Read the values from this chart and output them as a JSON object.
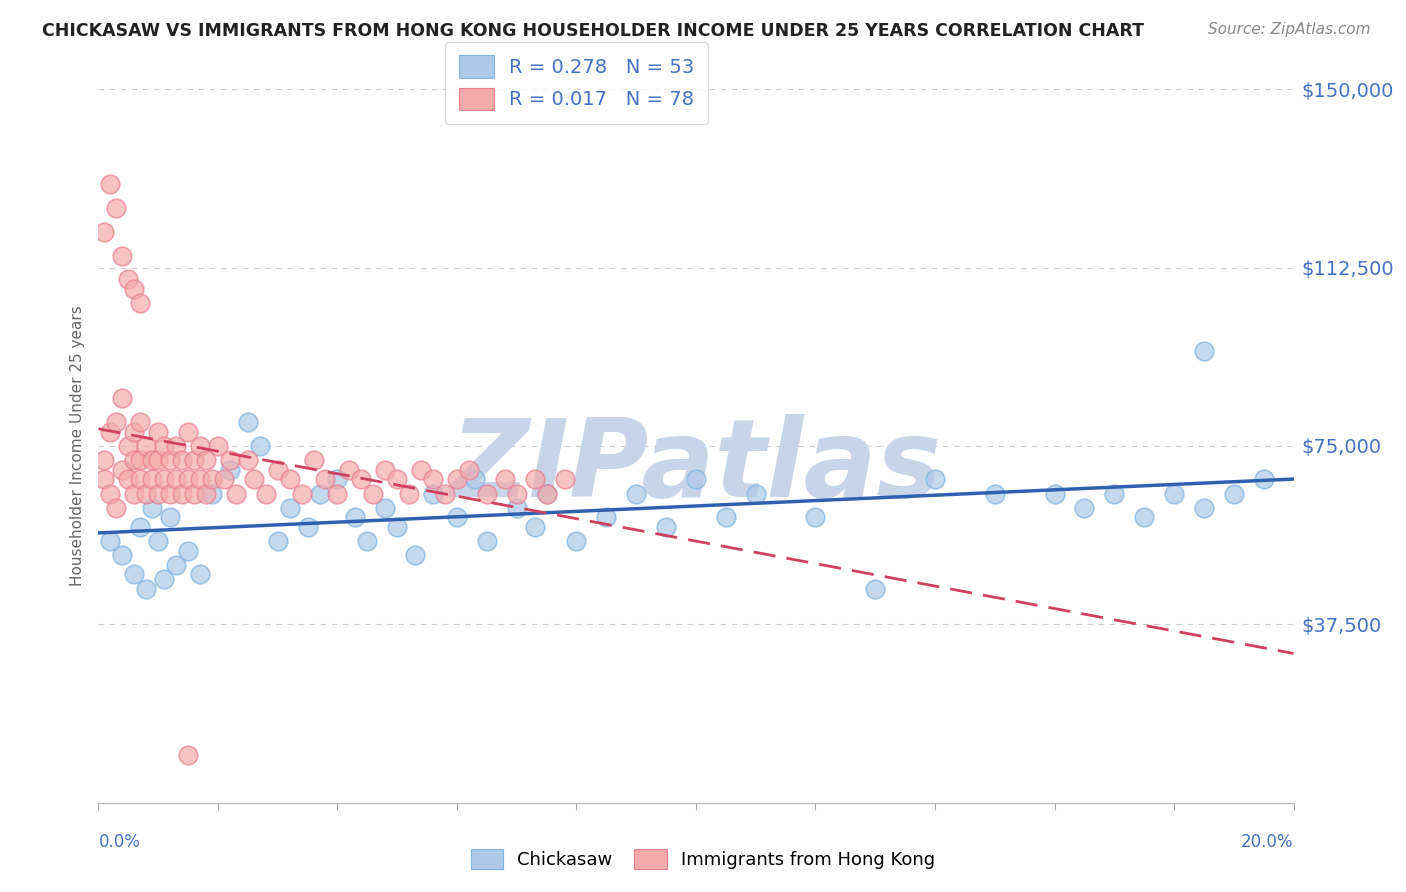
{
  "title": "CHICKASAW VS IMMIGRANTS FROM HONG KONG HOUSEHOLDER INCOME UNDER 25 YEARS CORRELATION CHART",
  "source": "Source: ZipAtlas.com",
  "ylabel": "Householder Income Under 25 years",
  "yticks": [
    0,
    37500,
    75000,
    112500,
    150000
  ],
  "ytick_labels": [
    "",
    "$37,500",
    "$75,000",
    "$112,500",
    "$150,000"
  ],
  "watermark": "ZIPatlas",
  "watermark_color": "#c8d4e8",
  "background_color": "#ffffff",
  "title_color": "#222222",
  "source_color": "#888888",
  "axis_label_color": "#4472c4",
  "chickasaw_color": "#adc9e8",
  "hk_color": "#f4aaaa",
  "chickasaw_edge_color": "#7fb3e0",
  "hk_edge_color": "#e88090",
  "chickasaw_line_color": "#3060b0",
  "hk_line_color": "#d04060",
  "grid_color": "#cccccc",
  "xlim": [
    0.0,
    0.2
  ],
  "ylim": [
    0,
    150000
  ],
  "chickasaw_x": [
    0.002,
    0.004,
    0.006,
    0.007,
    0.008,
    0.009,
    0.01,
    0.011,
    0.012,
    0.013,
    0.015,
    0.017,
    0.019,
    0.022,
    0.025,
    0.027,
    0.03,
    0.032,
    0.035,
    0.037,
    0.04,
    0.043,
    0.045,
    0.048,
    0.05,
    0.053,
    0.056,
    0.06,
    0.063,
    0.065,
    0.07,
    0.073,
    0.075,
    0.08,
    0.085,
    0.09,
    0.095,
    0.1,
    0.105,
    0.11,
    0.12,
    0.13,
    0.14,
    0.15,
    0.16,
    0.165,
    0.17,
    0.175,
    0.18,
    0.185,
    0.19,
    0.195,
    0.185
  ],
  "chickasaw_y": [
    55000,
    52000,
    48000,
    58000,
    45000,
    62000,
    55000,
    47000,
    60000,
    50000,
    53000,
    48000,
    65000,
    70000,
    80000,
    75000,
    55000,
    62000,
    58000,
    65000,
    68000,
    60000,
    55000,
    62000,
    58000,
    52000,
    65000,
    60000,
    68000,
    55000,
    62000,
    58000,
    65000,
    55000,
    60000,
    65000,
    58000,
    68000,
    60000,
    65000,
    60000,
    45000,
    68000,
    65000,
    65000,
    62000,
    65000,
    60000,
    65000,
    62000,
    65000,
    68000,
    95000
  ],
  "hk_x": [
    0.001,
    0.001,
    0.002,
    0.002,
    0.003,
    0.003,
    0.004,
    0.004,
    0.005,
    0.005,
    0.006,
    0.006,
    0.006,
    0.007,
    0.007,
    0.007,
    0.008,
    0.008,
    0.009,
    0.009,
    0.01,
    0.01,
    0.01,
    0.011,
    0.011,
    0.012,
    0.012,
    0.013,
    0.013,
    0.014,
    0.014,
    0.015,
    0.015,
    0.016,
    0.016,
    0.017,
    0.017,
    0.018,
    0.018,
    0.019,
    0.02,
    0.021,
    0.022,
    0.023,
    0.025,
    0.026,
    0.028,
    0.03,
    0.032,
    0.034,
    0.036,
    0.038,
    0.04,
    0.042,
    0.044,
    0.046,
    0.048,
    0.05,
    0.052,
    0.054,
    0.056,
    0.058,
    0.06,
    0.062,
    0.065,
    0.068,
    0.07,
    0.073,
    0.075,
    0.078,
    0.001,
    0.002,
    0.003,
    0.004,
    0.005,
    0.006,
    0.007,
    0.015
  ],
  "hk_y": [
    72000,
    68000,
    78000,
    65000,
    80000,
    62000,
    85000,
    70000,
    75000,
    68000,
    72000,
    78000,
    65000,
    80000,
    72000,
    68000,
    75000,
    65000,
    72000,
    68000,
    78000,
    65000,
    72000,
    75000,
    68000,
    72000,
    65000,
    68000,
    75000,
    72000,
    65000,
    78000,
    68000,
    72000,
    65000,
    75000,
    68000,
    72000,
    65000,
    68000,
    75000,
    68000,
    72000,
    65000,
    72000,
    68000,
    65000,
    70000,
    68000,
    65000,
    72000,
    68000,
    65000,
    70000,
    68000,
    65000,
    70000,
    68000,
    65000,
    70000,
    68000,
    65000,
    68000,
    70000,
    65000,
    68000,
    65000,
    68000,
    65000,
    68000,
    120000,
    130000,
    125000,
    115000,
    110000,
    108000,
    105000,
    10000
  ]
}
